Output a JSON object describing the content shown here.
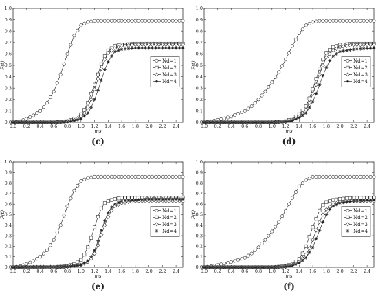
{
  "chart_data": [
    {
      "type": "line",
      "panel_label": "(c)",
      "xlabel": "ms",
      "ylabel": "F(t)",
      "xlim": [
        0,
        2.5
      ],
      "ylim": [
        0,
        1.0
      ],
      "xticks": [
        "0.0",
        "0.2",
        "0.4",
        "0.6",
        "0.8",
        "1.0",
        "1.2",
        "1.4",
        "1.6",
        "1.8",
        "2.0",
        "2.2",
        "2.4"
      ],
      "yticks": [
        "0.0",
        "0.1",
        "0.2",
        "0.3",
        "0.4",
        "0.5",
        "0.6",
        "0.7",
        "0.8",
        "0.9",
        "1.0"
      ],
      "legend_position": "right",
      "series": [
        {
          "name": "Nd=1",
          "marker": "circle",
          "x": [
            0,
            0.1,
            0.2,
            0.3,
            0.4,
            0.5,
            0.6,
            0.7,
            0.8,
            0.9,
            1.0,
            1.1,
            1.2,
            1.3,
            1.4,
            1.6,
            1.8,
            2.0,
            2.2,
            2.5
          ],
          "y": [
            0,
            0.01,
            0.03,
            0.06,
            0.1,
            0.17,
            0.27,
            0.42,
            0.6,
            0.76,
            0.85,
            0.88,
            0.89,
            0.89,
            0.89,
            0.89,
            0.89,
            0.89,
            0.89,
            0.89
          ]
        },
        {
          "name": "Nd=2",
          "marker": "square",
          "x": [
            0,
            0.6,
            0.8,
            0.9,
            1.0,
            1.05,
            1.1,
            1.15,
            1.2,
            1.25,
            1.3,
            1.35,
            1.4,
            1.5,
            1.6,
            1.8,
            2.0,
            2.2,
            2.5
          ],
          "y": [
            0,
            0,
            0.01,
            0.03,
            0.07,
            0.11,
            0.17,
            0.25,
            0.33,
            0.42,
            0.51,
            0.58,
            0.63,
            0.67,
            0.68,
            0.69,
            0.69,
            0.69,
            0.69
          ]
        },
        {
          "name": "Nd=3",
          "marker": "diamond",
          "x": [
            0,
            0.6,
            0.8,
            0.9,
            1.0,
            1.05,
            1.1,
            1.15,
            1.2,
            1.25,
            1.3,
            1.35,
            1.4,
            1.5,
            1.6,
            1.8,
            2.0,
            2.2,
            2.5
          ],
          "y": [
            0,
            0,
            0.01,
            0.02,
            0.05,
            0.08,
            0.13,
            0.2,
            0.29,
            0.38,
            0.47,
            0.55,
            0.61,
            0.65,
            0.67,
            0.68,
            0.68,
            0.68,
            0.68
          ]
        },
        {
          "name": "Nd=4",
          "marker": "star",
          "x": [
            0,
            0.6,
            0.8,
            0.9,
            1.0,
            1.1,
            1.15,
            1.2,
            1.25,
            1.3,
            1.35,
            1.4,
            1.45,
            1.5,
            1.6,
            1.8,
            2.0,
            2.2,
            2.5
          ],
          "y": [
            0,
            0,
            0.005,
            0.015,
            0.03,
            0.08,
            0.13,
            0.2,
            0.28,
            0.37,
            0.46,
            0.53,
            0.58,
            0.62,
            0.64,
            0.65,
            0.65,
            0.65,
            0.65
          ]
        }
      ]
    },
    {
      "type": "line",
      "panel_label": "(d)",
      "xlabel": "ms",
      "ylabel": "F(t)",
      "xlim": [
        0,
        2.5
      ],
      "ylim": [
        0,
        1.0
      ],
      "xticks": [
        "0.0",
        "0.2",
        "0.4",
        "0.6",
        "0.8",
        "1.0",
        "1.2",
        "1.4",
        "1.6",
        "1.8",
        "2.0",
        "2.2",
        "2.4"
      ],
      "yticks": [
        "0.0",
        "0.1",
        "0.2",
        "0.3",
        "0.4",
        "0.5",
        "0.6",
        "0.7",
        "0.8",
        "0.9",
        "1.0"
      ],
      "legend_position": "right",
      "series": [
        {
          "name": "Nd=1",
          "marker": "circle",
          "x": [
            0,
            0.2,
            0.4,
            0.6,
            0.7,
            0.8,
            0.9,
            1.0,
            1.1,
            1.2,
            1.3,
            1.4,
            1.5,
            1.6,
            1.7,
            1.8,
            2.0,
            2.2,
            2.5
          ],
          "y": [
            0,
            0.02,
            0.05,
            0.1,
            0.14,
            0.2,
            0.27,
            0.35,
            0.44,
            0.55,
            0.67,
            0.78,
            0.85,
            0.88,
            0.89,
            0.89,
            0.89,
            0.89,
            0.89
          ]
        },
        {
          "name": "Nd=2",
          "marker": "square",
          "x": [
            0,
            1.0,
            1.2,
            1.3,
            1.4,
            1.5,
            1.55,
            1.6,
            1.65,
            1.7,
            1.75,
            1.8,
            1.9,
            2.0,
            2.2,
            2.5
          ],
          "y": [
            0,
            0,
            0.01,
            0.03,
            0.07,
            0.14,
            0.21,
            0.29,
            0.38,
            0.47,
            0.55,
            0.61,
            0.66,
            0.68,
            0.69,
            0.69
          ]
        },
        {
          "name": "Nd=3",
          "marker": "diamond",
          "x": [
            0,
            1.0,
            1.2,
            1.3,
            1.4,
            1.5,
            1.55,
            1.6,
            1.65,
            1.7,
            1.75,
            1.8,
            1.9,
            2.0,
            2.2,
            2.5
          ],
          "y": [
            0,
            0,
            0.005,
            0.02,
            0.05,
            0.11,
            0.17,
            0.25,
            0.33,
            0.42,
            0.5,
            0.57,
            0.63,
            0.66,
            0.68,
            0.68
          ]
        },
        {
          "name": "Nd=4",
          "marker": "star",
          "x": [
            0,
            1.0,
            1.2,
            1.3,
            1.4,
            1.5,
            1.6,
            1.65,
            1.7,
            1.75,
            1.8,
            1.85,
            1.9,
            2.0,
            2.2,
            2.5
          ],
          "y": [
            0,
            0,
            0.005,
            0.015,
            0.04,
            0.08,
            0.18,
            0.25,
            0.33,
            0.41,
            0.48,
            0.54,
            0.58,
            0.62,
            0.64,
            0.65
          ]
        }
      ]
    },
    {
      "type": "line",
      "panel_label": "(e)",
      "xlabel": "ms",
      "ylabel": "F(t)",
      "xlim": [
        0,
        2.5
      ],
      "ylim": [
        0,
        1.0
      ],
      "xticks": [
        "0.0",
        "0.2",
        "0.4",
        "0.6",
        "0.8",
        "1.0",
        "1.2",
        "1.4",
        "1.6",
        "1.8",
        "2.0",
        "2.2",
        "2.4"
      ],
      "yticks": [
        "0.0",
        "0.1",
        "0.2",
        "0.3",
        "0.4",
        "0.5",
        "0.6",
        "0.7",
        "0.8",
        "0.9",
        "1.0"
      ],
      "legend_position": "right",
      "series": [
        {
          "name": "Nd=1",
          "marker": "circle",
          "x": [
            0,
            0.1,
            0.2,
            0.3,
            0.4,
            0.5,
            0.6,
            0.7,
            0.8,
            0.9,
            1.0,
            1.1,
            1.2,
            1.3,
            1.4,
            1.6,
            1.8,
            2.0,
            2.2,
            2.5
          ],
          "y": [
            0,
            0.01,
            0.03,
            0.06,
            0.1,
            0.16,
            0.26,
            0.4,
            0.58,
            0.73,
            0.82,
            0.85,
            0.86,
            0.86,
            0.86,
            0.86,
            0.86,
            0.86,
            0.86,
            0.86
          ]
        },
        {
          "name": "Nd=2",
          "marker": "square",
          "x": [
            0,
            0.6,
            0.8,
            0.9,
            1.0,
            1.05,
            1.1,
            1.15,
            1.2,
            1.25,
            1.3,
            1.35,
            1.4,
            1.5,
            1.6,
            1.8,
            2.0,
            2.2,
            2.5
          ],
          "y": [
            0,
            0,
            0.01,
            0.03,
            0.07,
            0.12,
            0.19,
            0.28,
            0.38,
            0.48,
            0.56,
            0.61,
            0.63,
            0.65,
            0.66,
            0.66,
            0.66,
            0.66,
            0.66
          ]
        },
        {
          "name": "Nd=3",
          "marker": "diamond",
          "x": [
            0,
            0.8,
            1.0,
            1.1,
            1.15,
            1.2,
            1.25,
            1.3,
            1.35,
            1.4,
            1.45,
            1.5,
            1.6,
            1.8,
            2.0,
            2.2,
            2.5
          ],
          "y": [
            0,
            0.005,
            0.02,
            0.05,
            0.08,
            0.13,
            0.21,
            0.31,
            0.4,
            0.48,
            0.54,
            0.58,
            0.61,
            0.63,
            0.63,
            0.63,
            0.63
          ]
        },
        {
          "name": "Nd=4",
          "marker": "star",
          "x": [
            0,
            0.8,
            1.0,
            1.1,
            1.15,
            1.2,
            1.25,
            1.3,
            1.35,
            1.4,
            1.45,
            1.5,
            1.6,
            1.8,
            2.0,
            2.2,
            2.5
          ],
          "y": [
            0,
            0.005,
            0.02,
            0.06,
            0.1,
            0.16,
            0.25,
            0.35,
            0.44,
            0.52,
            0.57,
            0.6,
            0.63,
            0.64,
            0.65,
            0.65,
            0.65
          ]
        }
      ]
    },
    {
      "type": "line",
      "panel_label": "(f)",
      "xlabel": "ms",
      "ylabel": "F(t)",
      "xlim": [
        0,
        2.5
      ],
      "ylim": [
        0,
        1.0
      ],
      "xticks": [
        "0.0",
        "0.2",
        "0.4",
        "0.6",
        "0.8",
        "1.0",
        "1.2",
        "1.4",
        "1.6",
        "1.8",
        "2.0",
        "2.2",
        "2.4"
      ],
      "yticks": [
        "0.0",
        "0.1",
        "0.2",
        "0.3",
        "0.4",
        "0.5",
        "0.6",
        "0.7",
        "0.8",
        "0.9",
        "1.0"
      ],
      "legend_position": "right",
      "series": [
        {
          "name": "Nd=1",
          "marker": "circle",
          "x": [
            0,
            0.2,
            0.4,
            0.6,
            0.7,
            0.8,
            0.9,
            1.0,
            1.1,
            1.2,
            1.3,
            1.4,
            1.5,
            1.6,
            1.7,
            1.8,
            2.0,
            2.2,
            2.5
          ],
          "y": [
            0,
            0.02,
            0.05,
            0.09,
            0.13,
            0.19,
            0.26,
            0.34,
            0.43,
            0.54,
            0.66,
            0.77,
            0.83,
            0.86,
            0.86,
            0.86,
            0.86,
            0.86,
            0.86
          ]
        },
        {
          "name": "Nd=2",
          "marker": "square",
          "x": [
            0,
            1.0,
            1.2,
            1.3,
            1.4,
            1.45,
            1.5,
            1.55,
            1.6,
            1.65,
            1.7,
            1.75,
            1.8,
            1.9,
            2.0,
            2.2,
            2.5
          ],
          "y": [
            0,
            0,
            0.01,
            0.03,
            0.08,
            0.13,
            0.2,
            0.29,
            0.38,
            0.46,
            0.54,
            0.59,
            0.62,
            0.64,
            0.65,
            0.66,
            0.66
          ]
        },
        {
          "name": "Nd=3",
          "marker": "diamond",
          "x": [
            0,
            1.0,
            1.2,
            1.3,
            1.4,
            1.5,
            1.55,
            1.6,
            1.65,
            1.7,
            1.75,
            1.8,
            1.9,
            2.0,
            2.2,
            2.5
          ],
          "y": [
            0,
            0,
            0.005,
            0.02,
            0.05,
            0.12,
            0.18,
            0.26,
            0.35,
            0.43,
            0.5,
            0.55,
            0.6,
            0.62,
            0.63,
            0.63
          ]
        },
        {
          "name": "Nd=4",
          "marker": "star",
          "x": [
            0,
            1.0,
            1.2,
            1.3,
            1.4,
            1.5,
            1.6,
            1.65,
            1.7,
            1.75,
            1.8,
            1.85,
            1.9,
            2.0,
            2.2,
            2.5
          ],
          "y": [
            0,
            0,
            0.005,
            0.015,
            0.04,
            0.09,
            0.19,
            0.27,
            0.35,
            0.43,
            0.5,
            0.55,
            0.58,
            0.61,
            0.63,
            0.64
          ]
        }
      ]
    }
  ]
}
